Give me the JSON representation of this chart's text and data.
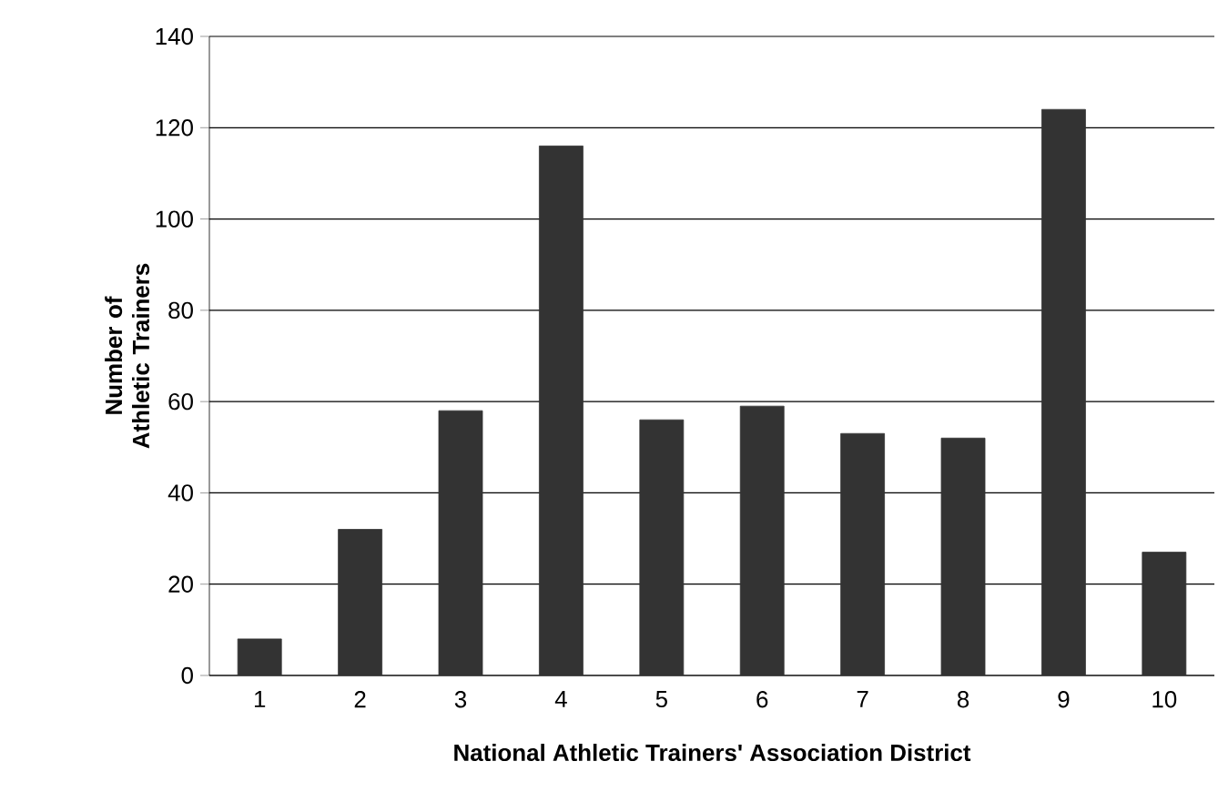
{
  "chart_data": {
    "type": "bar",
    "xlabel": "National Athletic Trainers' Association District",
    "ylabel": "Number of Athletic Trainers",
    "categories": [
      "1",
      "2",
      "3",
      "4",
      "5",
      "6",
      "7",
      "8",
      "9",
      "10"
    ],
    "values": [
      8,
      32,
      58,
      116,
      56,
      59,
      53,
      52,
      124,
      27
    ],
    "color": "#333333",
    "ylim": [
      0,
      140
    ],
    "yticks": [
      0,
      20,
      40,
      60,
      80,
      100,
      120,
      140
    ],
    "grid": "y"
  }
}
